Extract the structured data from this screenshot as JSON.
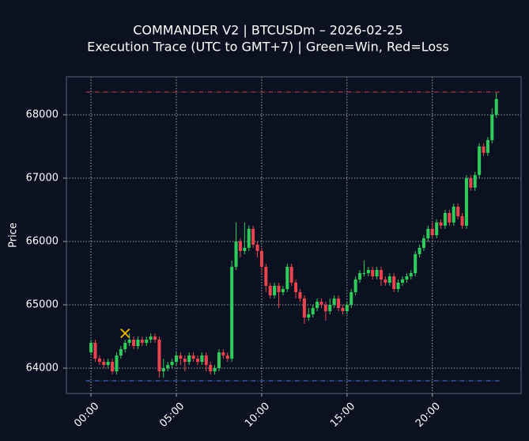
{
  "chart_data": {
    "type": "candlestick",
    "title": "COMMANDER V2 | BTCUSDm – 2026-02-25",
    "subtitle": "Execution Trace (UTC to GMT+7) | Green=Win, Red=Loss",
    "ylabel": "Price",
    "up_color": "#2ecc5a",
    "down_color": "#e8434f",
    "grid": true,
    "xlim": [
      -1.44,
      25.2
    ],
    "ylim": [
      63600,
      68600
    ],
    "xticks": [
      {
        "value": 0,
        "label": "00:00"
      },
      {
        "value": 5,
        "label": "05:00"
      },
      {
        "value": 10,
        "label": "10:00"
      },
      {
        "value": 15,
        "label": "15:00"
      },
      {
        "value": 20,
        "label": "20:00"
      }
    ],
    "yticks": [
      64000,
      65000,
      66000,
      67000,
      68000
    ],
    "x": [
      0,
      0.25,
      0.5,
      0.75,
      1,
      1.25,
      1.5,
      1.75,
      2,
      2.25,
      2.5,
      2.75,
      3,
      3.25,
      3.5,
      3.75,
      4,
      4.25,
      4.5,
      4.75,
      5,
      5.25,
      5.5,
      5.75,
      6,
      6.25,
      6.5,
      6.75,
      7,
      7.25,
      7.5,
      7.75,
      8,
      8.25,
      8.5,
      8.75,
      9,
      9.25,
      9.5,
      9.75,
      10,
      10.25,
      10.5,
      10.75,
      11,
      11.25,
      11.5,
      11.75,
      12,
      12.25,
      12.5,
      12.75,
      13,
      13.25,
      13.5,
      13.75,
      14,
      14.25,
      14.5,
      14.75,
      15,
      15.25,
      15.5,
      15.75,
      16,
      16.25,
      16.5,
      16.75,
      17,
      17.25,
      17.5,
      17.75,
      18,
      18.25,
      18.5,
      18.75,
      19,
      19.25,
      19.5,
      19.75,
      20,
      20.25,
      20.5,
      20.75,
      21,
      21.25,
      21.5,
      21.75,
      22,
      22.25,
      22.5,
      22.75,
      23,
      23.25,
      23.5,
      23.75
    ],
    "open": [
      64250,
      64400,
      64150,
      64100,
      64050,
      64100,
      63950,
      64200,
      64300,
      64400,
      64450,
      64350,
      64450,
      64400,
      64450,
      64500,
      64450,
      63950,
      64000,
      64050,
      64100,
      64200,
      64150,
      64100,
      64200,
      64150,
      64100,
      64200,
      64050,
      63950,
      64000,
      64250,
      64200,
      64150,
      65600,
      66000,
      65850,
      65900,
      66200,
      65950,
      65850,
      65600,
      65300,
      65150,
      65300,
      65200,
      65250,
      65600,
      65350,
      65200,
      65100,
      64800,
      64850,
      64950,
      65050,
      65000,
      64900,
      65000,
      65100,
      64950,
      64900,
      65000,
      65200,
      65400,
      65500,
      65500,
      65550,
      65450,
      65550,
      65400,
      65350,
      65450,
      65250,
      65350,
      65400,
      65450,
      65500,
      65800,
      65900,
      66050,
      66200,
      66100,
      66300,
      66250,
      66450,
      66300,
      66550,
      66400,
      66250,
      67000,
      66850,
      67050,
      67500,
      67400,
      67600,
      68000
    ],
    "high": [
      64450,
      64450,
      64200,
      64150,
      64150,
      64150,
      64250,
      64350,
      64450,
      64550,
      64500,
      64500,
      64500,
      64500,
      64550,
      64550,
      64500,
      64150,
      64100,
      64150,
      64250,
      64250,
      64200,
      64250,
      64250,
      64200,
      64250,
      64250,
      64100,
      64050,
      64300,
      64300,
      64250,
      65700,
      66300,
      66050,
      66300,
      66250,
      66250,
      66000,
      65900,
      65650,
      65350,
      65350,
      65350,
      65300,
      65650,
      65650,
      65400,
      65250,
      65150,
      64950,
      65000,
      65100,
      65100,
      65050,
      65100,
      65150,
      65150,
      65000,
      65050,
      65250,
      65450,
      65550,
      65700,
      65600,
      65600,
      65600,
      65600,
      65450,
      65500,
      65500,
      65400,
      65450,
      65500,
      65550,
      65850,
      65950,
      66100,
      66250,
      66300,
      66350,
      66350,
      66500,
      66500,
      66600,
      66600,
      66450,
      67050,
      67050,
      67100,
      67550,
      67550,
      67650,
      68100,
      68350
    ],
    "low": [
      64200,
      64100,
      64050,
      64000,
      64000,
      63900,
      63900,
      64150,
      64250,
      64350,
      64300,
      64300,
      64350,
      64350,
      64400,
      64400,
      63850,
      63850,
      63950,
      64000,
      64050,
      64050,
      63950,
      64050,
      64100,
      64050,
      64050,
      63950,
      63900,
      63900,
      63950,
      64150,
      64100,
      64100,
      65550,
      65750,
      65800,
      65850,
      65900,
      65750,
      65500,
      65200,
      65100,
      65100,
      64950,
      65150,
      65200,
      65300,
      65100,
      65050,
      64700,
      64750,
      64800,
      64900,
      64950,
      64750,
      64850,
      64950,
      64900,
      64850,
      64850,
      64950,
      65150,
      65350,
      65450,
      65450,
      65400,
      65400,
      65300,
      65300,
      65300,
      65200,
      65200,
      65300,
      65350,
      65400,
      65450,
      65750,
      65850,
      66000,
      66050,
      66050,
      66200,
      66200,
      66250,
      66250,
      66350,
      66200,
      66200,
      66800,
      66800,
      67000,
      67350,
      67350,
      67550,
      67950
    ],
    "close": [
      64400,
      64150,
      64100,
      64050,
      64100,
      63950,
      64200,
      64300,
      64400,
      64450,
      64350,
      64450,
      64400,
      64450,
      64500,
      64450,
      63950,
      64000,
      64050,
      64100,
      64200,
      64150,
      64100,
      64200,
      64150,
      64100,
      64200,
      64050,
      63950,
      64000,
      64250,
      64200,
      64150,
      65600,
      66000,
      65850,
      65900,
      66200,
      65950,
      65850,
      65600,
      65300,
      65150,
      65300,
      65200,
      65250,
      65600,
      65350,
      65200,
      65100,
      64800,
      64850,
      64950,
      65050,
      65000,
      64900,
      65000,
      65100,
      64950,
      64900,
      65000,
      65200,
      65400,
      65500,
      65500,
      65550,
      65450,
      65550,
      65400,
      65350,
      65450,
      65250,
      65350,
      65400,
      65450,
      65500,
      65800,
      65900,
      66050,
      66200,
      66100,
      66300,
      66250,
      66450,
      66300,
      66550,
      66400,
      66250,
      67000,
      66850,
      67050,
      67500,
      67400,
      67600,
      68000,
      68250
    ],
    "hlines": [
      {
        "value": 68360,
        "x": [
          -0.3,
          24
        ],
        "color": "#c0404a"
      },
      {
        "value": 63800,
        "x": [
          -0.3,
          24
        ],
        "color": "#4a78d0"
      }
    ],
    "markers": [
      {
        "x": 2,
        "y": 64550,
        "color": "#f5b800"
      }
    ]
  }
}
